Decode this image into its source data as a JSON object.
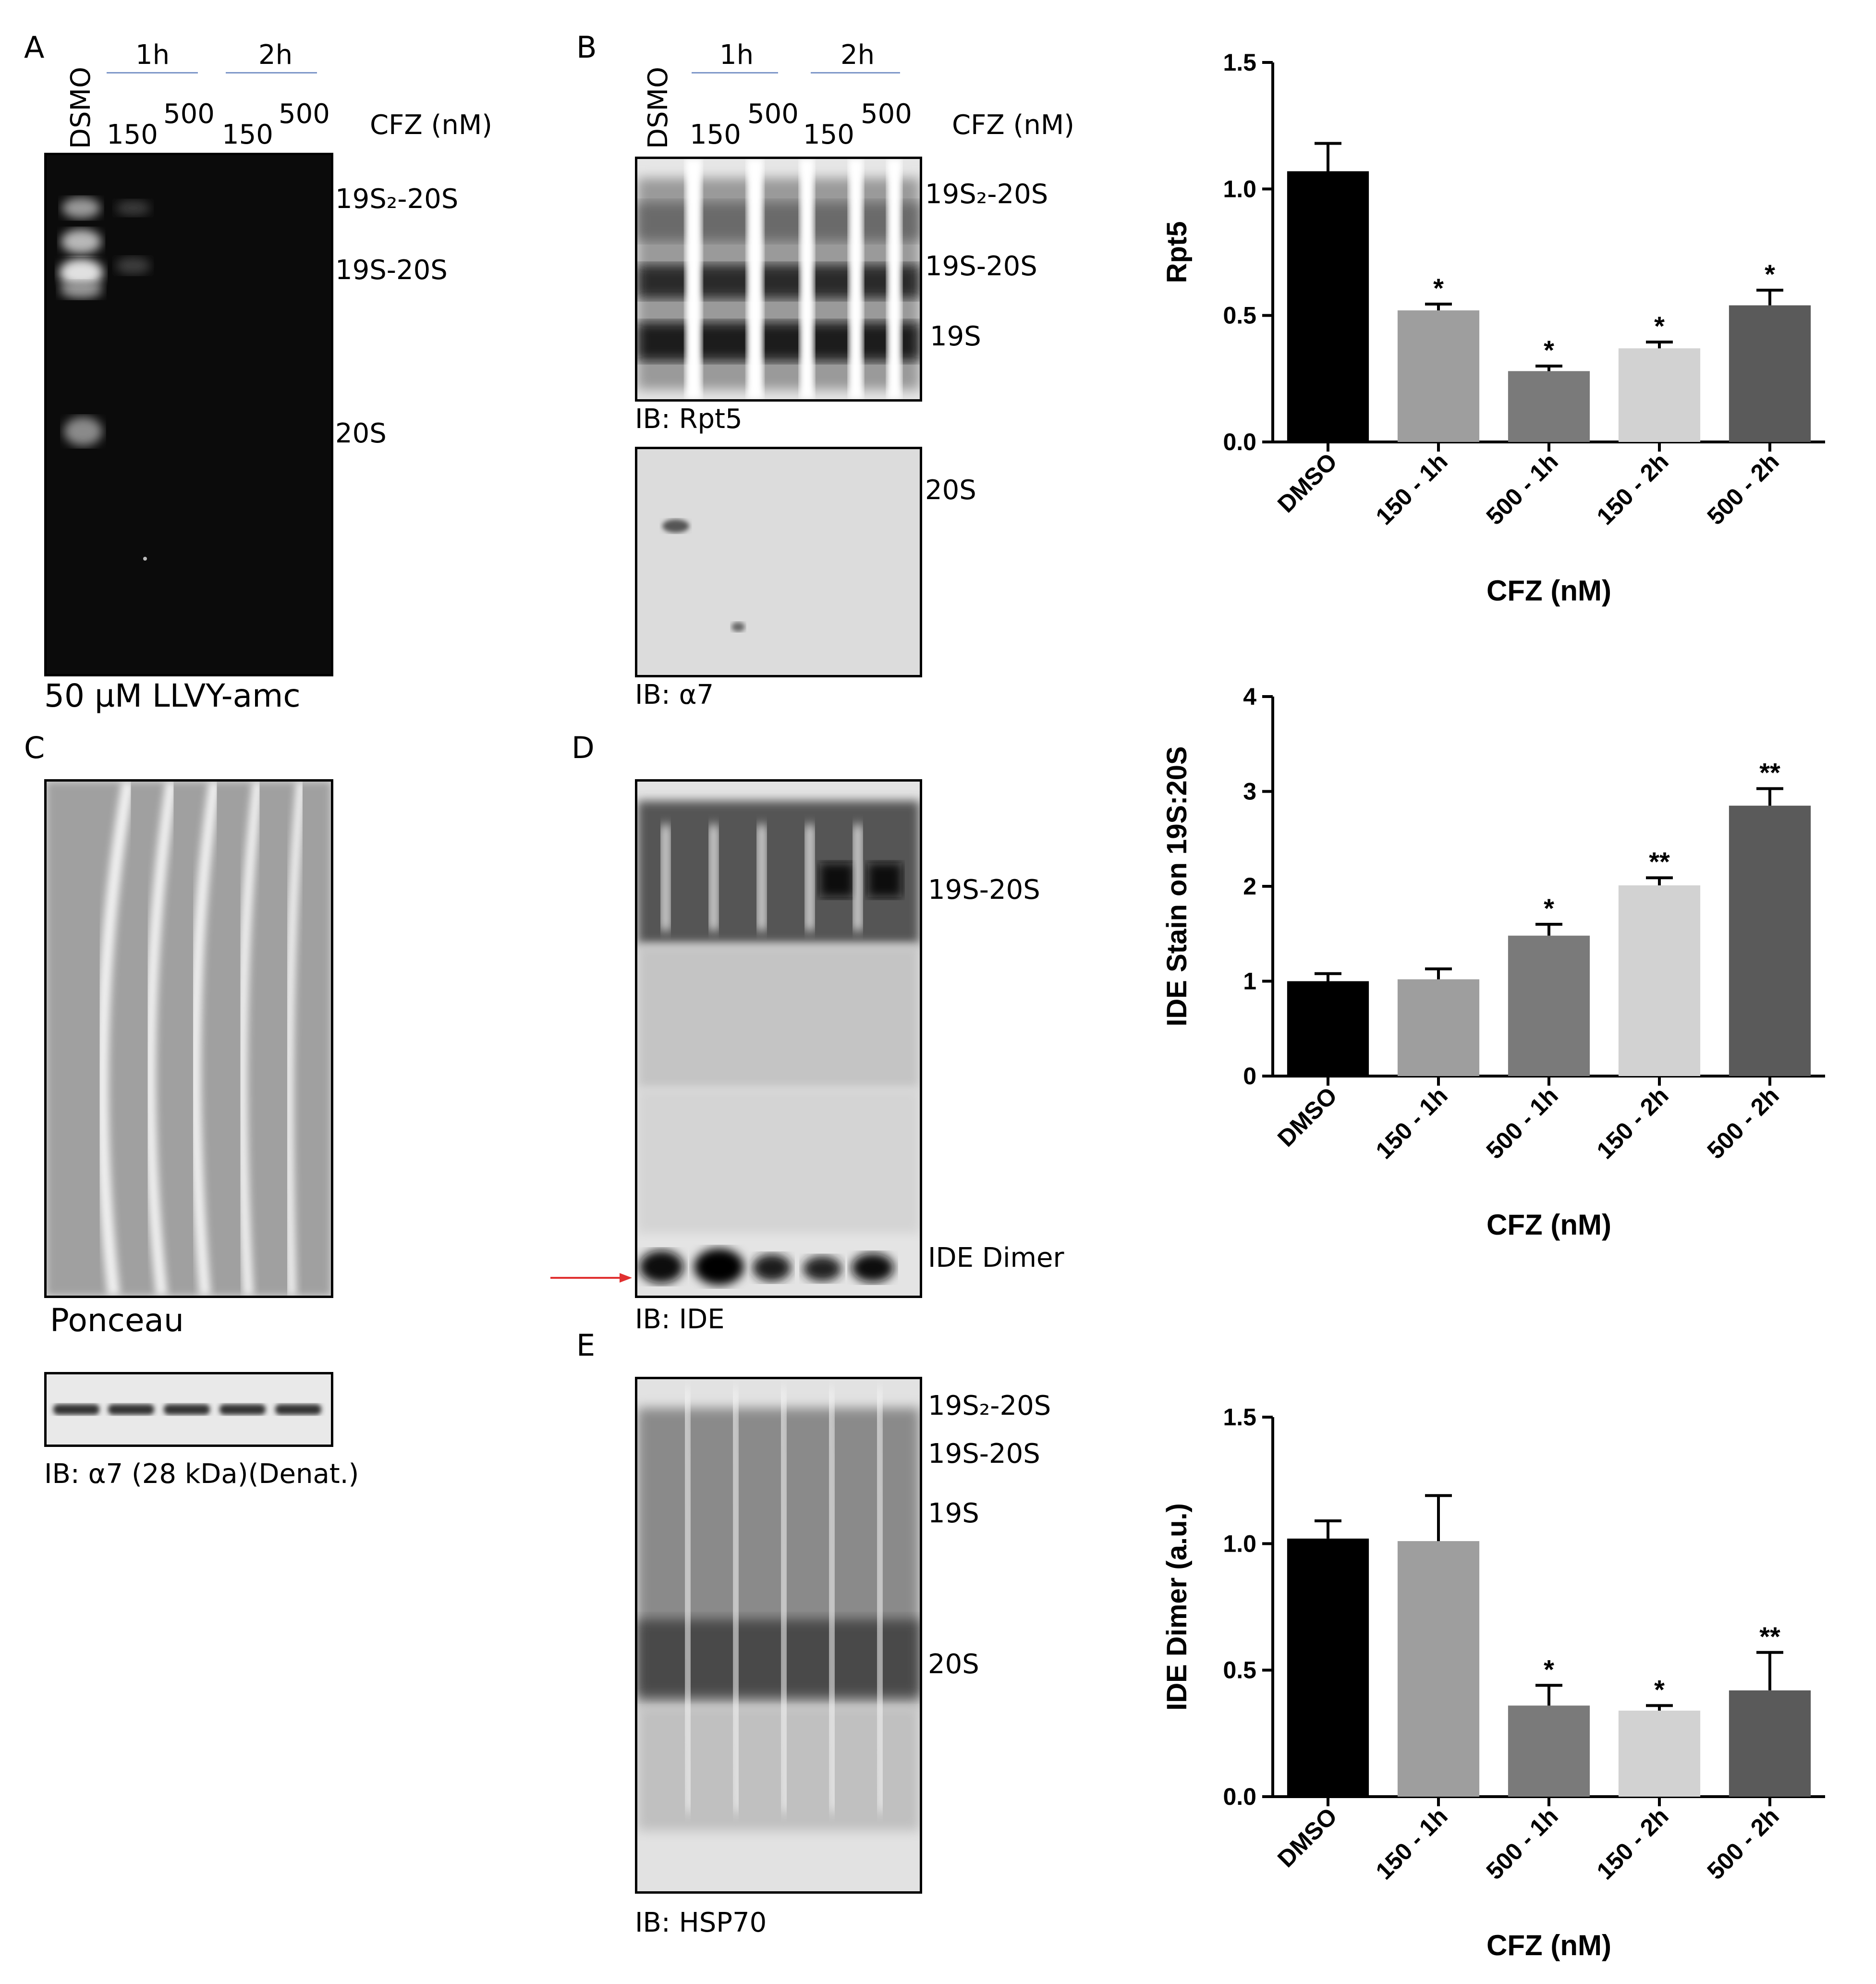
{
  "panels": {
    "A": {
      "letter": "A",
      "lane_dmso": "DSMO",
      "time1": "1h",
      "time2": "2h",
      "c150a": "150",
      "c500a": "500",
      "c150b": "150",
      "c500b": "500",
      "cfz": "CFZ (nM)",
      "bands": [
        "19S₂-20S",
        "19S-20S",
        "20S"
      ],
      "caption": "50 µM LLVY-amc"
    },
    "B": {
      "letter": "B",
      "lane_dmso": "DSMO",
      "time1": "1h",
      "time2": "2h",
      "c150a": "150",
      "c500a": "500",
      "c150b": "150",
      "c500b": "500",
      "cfz": "CFZ (nM)",
      "bands_top": [
        "19S₂-20S",
        "19S-20S",
        "19S"
      ],
      "ib_top": "IB: Rpt5",
      "band_bottom": "20S",
      "ib_bottom": "IB: α7"
    },
    "C": {
      "letter": "C",
      "caption": "Ponceau",
      "ib": "IB: α7 (28 kDa)(Denat.)"
    },
    "D": {
      "letter": "D",
      "bands": [
        "19S-20S",
        "IDE Dimer"
      ],
      "ib": "IB: IDE"
    },
    "E": {
      "letter": "E",
      "bands": [
        "19S₂-20S",
        "19S-20S",
        "19S",
        "20S"
      ],
      "ib": "IB: HSP70"
    }
  },
  "chart_data": [
    {
      "type": "bar",
      "categories": [
        "DMSO",
        "150 - 1h",
        "500 - 1h",
        "150 - 2h",
        "500 - 2h"
      ],
      "values": [
        1.07,
        0.52,
        0.28,
        0.37,
        0.54
      ],
      "errors": [
        0.11,
        0.025,
        0.02,
        0.025,
        0.06
      ],
      "significance": [
        "",
        "*",
        "*",
        "*",
        "*"
      ],
      "colors": [
        "#000000",
        "#9e9e9e",
        "#7a7a7a",
        "#d2d2d2",
        "#5a5a5a"
      ],
      "ylabel": "Rpt5",
      "xlabel": "CFZ (nM)",
      "ylim": [
        0,
        1.5
      ],
      "yticks": [
        0.0,
        0.5,
        1.0,
        1.5
      ],
      "ytick_labels": [
        "0.0",
        "0.5",
        "1.0",
        "1.5"
      ]
    },
    {
      "type": "bar",
      "categories": [
        "DMSO",
        "150 - 1h",
        "500 - 1h",
        "150 - 2h",
        "500 - 2h"
      ],
      "values": [
        1.0,
        1.02,
        1.48,
        2.01,
        2.85
      ],
      "errors": [
        0.08,
        0.11,
        0.12,
        0.08,
        0.18
      ],
      "significance": [
        "",
        "",
        "*",
        "**",
        "**"
      ],
      "colors": [
        "#000000",
        "#9e9e9e",
        "#7a7a7a",
        "#d2d2d2",
        "#5a5a5a"
      ],
      "ylabel": "IDE Stain on 19S:20S",
      "xlabel": "CFZ (nM)",
      "ylim": [
        0,
        4
      ],
      "yticks": [
        0,
        1,
        2,
        3,
        4
      ],
      "ytick_labels": [
        "0",
        "1",
        "2",
        "3",
        "4"
      ]
    },
    {
      "type": "bar",
      "categories": [
        "DMSO",
        "150 - 1h",
        "500 - 1h",
        "150 - 2h",
        "500 - 2h"
      ],
      "values": [
        1.02,
        1.01,
        0.36,
        0.34,
        0.42
      ],
      "errors": [
        0.07,
        0.18,
        0.08,
        0.02,
        0.15
      ],
      "significance": [
        "",
        "",
        "*",
        "*",
        "**"
      ],
      "colors": [
        "#000000",
        "#9e9e9e",
        "#7a7a7a",
        "#d2d2d2",
        "#5a5a5a"
      ],
      "ylabel": "IDE Dimer (a.u.)",
      "xlabel": "CFZ (nM)",
      "ylim": [
        0,
        1.5
      ],
      "yticks": [
        0.0,
        0.5,
        1.0,
        1.5
      ],
      "ytick_labels": [
        "0.0",
        "0.5",
        "1.0",
        "1.5"
      ]
    }
  ]
}
